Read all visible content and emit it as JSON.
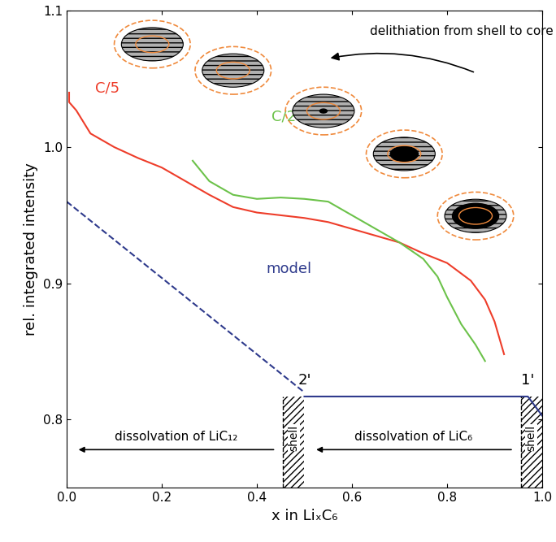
{
  "chart_data": {
    "type": "line",
    "x_label": "x in LiₓC₆",
    "y_label": "rel. integrated intensity",
    "xlim": [
      0.0,
      1.0
    ],
    "ylim": [
      0.75,
      1.1
    ],
    "xticks": [
      {
        "value": 0.0,
        "label": "0.0"
      },
      {
        "value": 0.2,
        "label": "0.2"
      },
      {
        "value": 0.4,
        "label": "0.4"
      },
      {
        "value": 0.6,
        "label": "0.6"
      },
      {
        "value": 0.8,
        "label": "0.8"
      },
      {
        "value": 1.0,
        "label": "1.0"
      }
    ],
    "yticks": [
      0.8,
      0.9,
      {
        "value": 1.0,
        "label": "1.0"
      },
      1.1
    ],
    "grid": false,
    "series": [
      {
        "name": "C/5",
        "color": "#ee3d2a",
        "line_style": "solid",
        "x": [
          0.005,
          0.005,
          0.02,
          0.05,
          0.1,
          0.15,
          0.2,
          0.25,
          0.3,
          0.35,
          0.4,
          0.45,
          0.5,
          0.55,
          0.6,
          0.65,
          0.7,
          0.75,
          0.8,
          0.85,
          0.88,
          0.9,
          0.92
        ],
        "values": [
          1.04,
          1.033,
          1.027,
          1.01,
          1.0,
          0.992,
          0.985,
          0.975,
          0.965,
          0.956,
          0.952,
          0.95,
          0.948,
          0.945,
          0.94,
          0.935,
          0.93,
          0.922,
          0.915,
          0.902,
          0.888,
          0.872,
          0.848
        ]
      },
      {
        "name": "C/2",
        "color": "#6cc24a",
        "line_style": "solid",
        "x": [
          0.265,
          0.3,
          0.35,
          0.4,
          0.45,
          0.5,
          0.55,
          0.6,
          0.65,
          0.7,
          0.75,
          0.78,
          0.8,
          0.83,
          0.86,
          0.88
        ],
        "values": [
          0.99,
          0.975,
          0.965,
          0.962,
          0.963,
          0.962,
          0.96,
          0.95,
          0.94,
          0.93,
          0.918,
          0.905,
          0.89,
          0.87,
          0.855,
          0.843
        ]
      },
      {
        "name": "model",
        "color": "#2e3a8c",
        "segments": [
          {
            "line_style": "dashed",
            "x": [
              0.0,
              0.5
            ],
            "values": [
              0.96,
              0.82
            ]
          },
          {
            "line_style": "solid",
            "x": [
              0.5,
              0.97,
              1.0
            ],
            "values": [
              0.817,
              0.817,
              0.803
            ]
          }
        ]
      }
    ],
    "annotations": {
      "top_arrow": "delithiation from shell to core",
      "points": [
        {
          "label": "2'",
          "x": 0.5
        },
        {
          "label": "1'",
          "x": 0.97
        }
      ],
      "shell": "shell",
      "shell_regions": [
        [
          0.455,
          0.5
        ],
        [
          0.955,
          1.0
        ]
      ],
      "arrow_left": "dissolvation of LiC₁₂",
      "arrow_right": "dissolvation of LiC₆"
    }
  }
}
